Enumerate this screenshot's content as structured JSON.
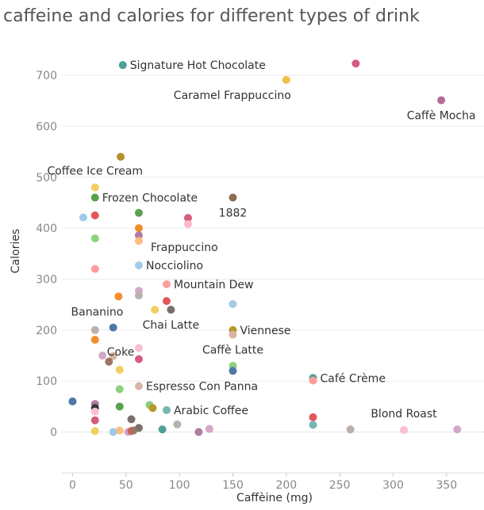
{
  "chart_data": {
    "type": "scatter",
    "title": "caffeine and calories for different types of drink",
    "xlabel": "Caffèine (mg)",
    "ylabel": "Calories",
    "xlim": [
      -10,
      385
    ],
    "ylim": [
      -80,
      770
    ],
    "xticks": [
      0,
      50,
      100,
      150,
      200,
      250,
      300,
      350
    ],
    "yticks": [
      0,
      100,
      200,
      300,
      400,
      500,
      600,
      700
    ],
    "grid": "horizontal",
    "zero_line": "dotted",
    "points": [
      {
        "x": 47,
        "y": 720,
        "color": "#4e9f9a"
      },
      {
        "x": 265,
        "y": 723,
        "color": "#d65b7c"
      },
      {
        "x": 200,
        "y": 691,
        "color": "#f0c04a"
      },
      {
        "x": 345,
        "y": 651,
        "color": "#b56a9c"
      },
      {
        "x": 45,
        "y": 540,
        "color": "#b38f2e"
      },
      {
        "x": 21,
        "y": 480,
        "color": "#f0cf5e"
      },
      {
        "x": 21,
        "y": 460,
        "color": "#59a14f"
      },
      {
        "x": 150,
        "y": 460,
        "color": "#8c6d4f"
      },
      {
        "x": 10,
        "y": 421,
        "color": "#a0cbe8"
      },
      {
        "x": 21,
        "y": 425,
        "color": "#e15759"
      },
      {
        "x": 62,
        "y": 430,
        "color": "#59a14f"
      },
      {
        "x": 108,
        "y": 420,
        "color": "#d65b7c"
      },
      {
        "x": 108,
        "y": 408,
        "color": "#ffb6c8"
      },
      {
        "x": 62,
        "y": 400,
        "color": "#f28e2b"
      },
      {
        "x": 21,
        "y": 380,
        "color": "#8cd17d"
      },
      {
        "x": 62,
        "y": 386,
        "color": "#b07aa1"
      },
      {
        "x": 62,
        "y": 375,
        "color": "#ffbe7d"
      },
      {
        "x": 62,
        "y": 327,
        "color": "#a0cbe8"
      },
      {
        "x": 21,
        "y": 320,
        "color": "#ff9d9a"
      },
      {
        "x": 88,
        "y": 290,
        "color": "#ff9d9a"
      },
      {
        "x": 62,
        "y": 277,
        "color": "#d4a6c8"
      },
      {
        "x": 62,
        "y": 268,
        "color": "#bab0ac"
      },
      {
        "x": 43,
        "y": 266,
        "color": "#f28e2b"
      },
      {
        "x": 88,
        "y": 257,
        "color": "#e15759"
      },
      {
        "x": 150,
        "y": 251,
        "color": "#a0cbe8"
      },
      {
        "x": 77,
        "y": 240,
        "color": "#f1ce63"
      },
      {
        "x": 92,
        "y": 240,
        "color": "#79706e"
      },
      {
        "x": 21,
        "y": 200,
        "color": "#bab0ac"
      },
      {
        "x": 38,
        "y": 205,
        "color": "#4e79a7"
      },
      {
        "x": 150,
        "y": 200,
        "color": "#b6992d"
      },
      {
        "x": 150,
        "y": 191,
        "color": "#d7b5a6"
      },
      {
        "x": 21,
        "y": 181,
        "color": "#f28e2b"
      },
      {
        "x": 62,
        "y": 165,
        "color": "#fabfd2"
      },
      {
        "x": 28,
        "y": 150,
        "color": "#d4a6c8"
      },
      {
        "x": 38,
        "y": 149,
        "color": "#d7b5a6"
      },
      {
        "x": 34,
        "y": 138,
        "color": "#9d7660"
      },
      {
        "x": 62,
        "y": 143,
        "color": "#d65b7c"
      },
      {
        "x": 150,
        "y": 130,
        "color": "#8cd17d"
      },
      {
        "x": 150,
        "y": 120,
        "color": "#4e79a7"
      },
      {
        "x": 44,
        "y": 122,
        "color": "#f1ce63"
      },
      {
        "x": 225,
        "y": 106,
        "color": "#4e9f9a"
      },
      {
        "x": 225,
        "y": 101,
        "color": "#ff9d9a"
      },
      {
        "x": 44,
        "y": 84,
        "color": "#8cd17d"
      },
      {
        "x": 62,
        "y": 90,
        "color": "#d7b5a6"
      },
      {
        "x": 0,
        "y": 60,
        "color": "#4e79a7"
      },
      {
        "x": 21,
        "y": 55,
        "color": "#b07aa1"
      },
      {
        "x": 21,
        "y": 47,
        "color": "#333333"
      },
      {
        "x": 44,
        "y": 50,
        "color": "#59a14f"
      },
      {
        "x": 72,
        "y": 53,
        "color": "#8cd17d"
      },
      {
        "x": 75,
        "y": 47,
        "color": "#b6992d"
      },
      {
        "x": 88,
        "y": 43,
        "color": "#76b7b2"
      },
      {
        "x": 21,
        "y": 40,
        "color": "#fabfd2"
      },
      {
        "x": 225,
        "y": 29,
        "color": "#e15759"
      },
      {
        "x": 21,
        "y": 23,
        "color": "#d65b7c"
      },
      {
        "x": 55,
        "y": 25,
        "color": "#79706e"
      },
      {
        "x": 98,
        "y": 15,
        "color": "#bab0ac"
      },
      {
        "x": 225,
        "y": 14,
        "color": "#76b7b2"
      },
      {
        "x": 62,
        "y": 8,
        "color": "#79706e"
      },
      {
        "x": 84,
        "y": 5,
        "color": "#4e9f9a"
      },
      {
        "x": 128,
        "y": 6,
        "color": "#d4a6c8"
      },
      {
        "x": 260,
        "y": 5,
        "color": "#bab0ac"
      },
      {
        "x": 310,
        "y": 4,
        "color": "#fabfd2"
      },
      {
        "x": 360,
        "y": 5,
        "color": "#d4a6c8"
      },
      {
        "x": 21,
        "y": 2,
        "color": "#f1ce63"
      },
      {
        "x": 44,
        "y": 3,
        "color": "#ffbe7d"
      },
      {
        "x": 38,
        "y": 0,
        "color": "#a0cbe8"
      },
      {
        "x": 52,
        "y": 0,
        "color": "#d4a6c8"
      },
      {
        "x": 55,
        "y": 2,
        "color": "#e15759"
      },
      {
        "x": 57,
        "y": 3,
        "color": "#9d7660"
      },
      {
        "x": 118,
        "y": 0,
        "color": "#b07aa1"
      }
    ],
    "annotations": [
      {
        "text": "Signature Hot Chocolate",
        "x": 47,
        "y": 720,
        "pos": "right"
      },
      {
        "text": "Caramel Frappuccino",
        "x": 200,
        "y": 691,
        "pos": "below-left"
      },
      {
        "text": "Caffè Mocha",
        "x": 345,
        "y": 651,
        "pos": "below-center"
      },
      {
        "text": "Coffee Ice Cream",
        "x": 21,
        "y": 480,
        "pos": "above-center"
      },
      {
        "text": "Frozen Chocolate",
        "x": 21,
        "y": 460,
        "pos": "right"
      },
      {
        "text": "1882",
        "x": 150,
        "y": 460,
        "pos": "below-center"
      },
      {
        "text": "Frappuccino",
        "x": 62,
        "y": 386,
        "pos": "right-below"
      },
      {
        "text": "Nocciolino",
        "x": 62,
        "y": 327,
        "pos": "right"
      },
      {
        "text": "Mountain Dew",
        "x": 88,
        "y": 290,
        "pos": "right"
      },
      {
        "text": "Bananino",
        "x": 43,
        "y": 266,
        "pos": "below-left"
      },
      {
        "text": "Chai Latte",
        "x": 92,
        "y": 240,
        "pos": "below-center"
      },
      {
        "text": "Viennese",
        "x": 150,
        "y": 200,
        "pos": "right"
      },
      {
        "text": "Coke",
        "x": 21,
        "y": 181,
        "pos": "right-below"
      },
      {
        "text": "Caffè Latte",
        "x": 150,
        "y": 191,
        "pos": "below-center"
      },
      {
        "text": "Café Crème",
        "x": 225,
        "y": 106,
        "pos": "right"
      },
      {
        "text": "Espresso Con Panna",
        "x": 62,
        "y": 90,
        "pos": "right"
      },
      {
        "text": "Arabic Coffee",
        "x": 88,
        "y": 43,
        "pos": "right"
      },
      {
        "text": "Blond Roast",
        "x": 310,
        "y": 4,
        "pos": "above-center"
      }
    ]
  }
}
